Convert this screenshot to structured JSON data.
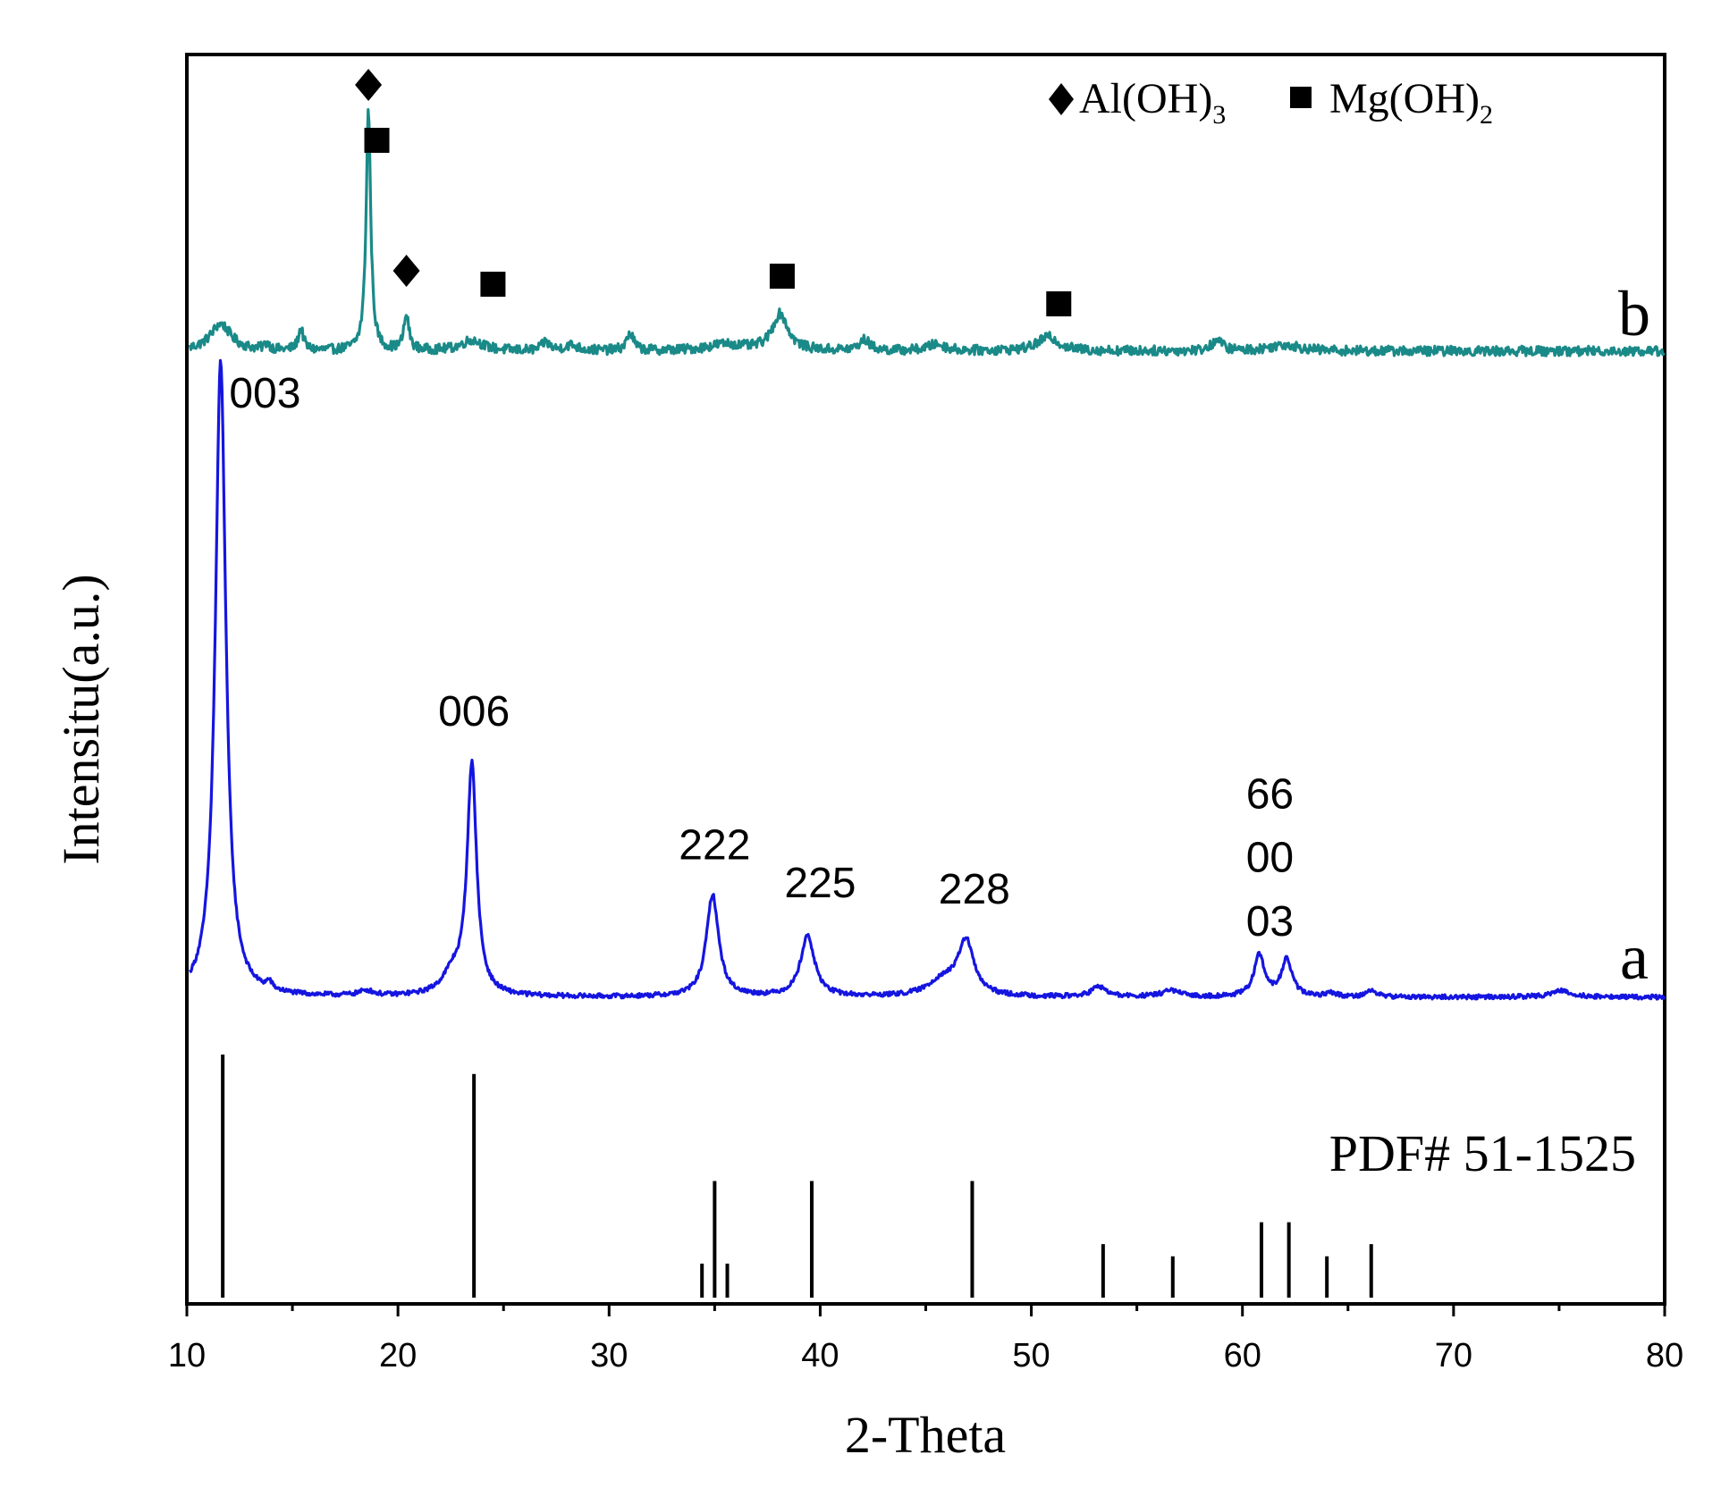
{
  "chart_data": {
    "type": "line",
    "xlabel": "2-Theta",
    "ylabel": "Intensitu(a.u.)",
    "xlim": [
      10,
      80
    ],
    "x_ticks": [
      10,
      20,
      30,
      40,
      50,
      60,
      70,
      80
    ],
    "y_ticks_shown": false,
    "grid": false,
    "legend": {
      "placement": "top-right",
      "entries": [
        {
          "marker": "diamond",
          "label": "Al(OH)",
          "subscript": "3"
        },
        {
          "marker": "square",
          "label": "Mg(OH)",
          "subscript": "2"
        }
      ]
    },
    "series": [
      {
        "name": "b",
        "color": "#1a8a88",
        "baseline": 0.6,
        "noise": 0.9,
        "peaks": [
          {
            "x": 11.6,
            "h": 2.5,
            "w": 0.6
          },
          {
            "x": 13.8,
            "h": 0.6,
            "w": 0.15
          },
          {
            "x": 15.4,
            "h": 2.0,
            "w": 0.15
          },
          {
            "x": 18.6,
            "h": 22.5,
            "w": 0.13
          },
          {
            "x": 20.4,
            "h": 3.2,
            "w": 0.15
          },
          {
            "x": 23.5,
            "h": 1.0,
            "w": 0.6
          },
          {
            "x": 27.0,
            "h": 0.8,
            "w": 0.2
          },
          {
            "x": 28.2,
            "h": 0.5,
            "w": 0.4
          },
          {
            "x": 31.0,
            "h": 1.6,
            "w": 0.2
          },
          {
            "x": 35.5,
            "h": 0.6,
            "w": 1.0
          },
          {
            "x": 38.1,
            "h": 3.4,
            "w": 0.45
          },
          {
            "x": 42.1,
            "h": 1.0,
            "w": 0.3
          },
          {
            "x": 45.5,
            "h": 0.6,
            "w": 0.5
          },
          {
            "x": 50.8,
            "h": 1.3,
            "w": 0.6
          },
          {
            "x": 58.8,
            "h": 1.0,
            "w": 0.3
          },
          {
            "x": 62.0,
            "h": 0.6,
            "w": 0.8
          }
        ],
        "markers": [
          {
            "x": 18.6,
            "type": "diamond"
          },
          {
            "x": 19.0,
            "type": "square"
          },
          {
            "x": 20.4,
            "type": "diamond"
          },
          {
            "x": 24.5,
            "type": "square"
          },
          {
            "x": 38.2,
            "type": "square"
          },
          {
            "x": 51.3,
            "type": "square"
          }
        ]
      },
      {
        "name": "a",
        "color": "#1515e0",
        "baseline": 0.3,
        "noise": 0.7,
        "peaks": [
          {
            "x": 11.6,
            "h": 100,
            "w": 0.3
          },
          {
            "x": 13.9,
            "h": 1.2,
            "w": 0.15
          },
          {
            "x": 18.5,
            "h": 0.8,
            "w": 0.4
          },
          {
            "x": 22.6,
            "h": 3.2,
            "w": 0.6
          },
          {
            "x": 23.5,
            "h": 36,
            "w": 0.27
          },
          {
            "x": 34.9,
            "h": 16,
            "w": 0.35
          },
          {
            "x": 39.4,
            "h": 9.5,
            "w": 0.4
          },
          {
            "x": 45.8,
            "h": 2.5,
            "w": 0.8
          },
          {
            "x": 46.9,
            "h": 8.5,
            "w": 0.45
          },
          {
            "x": 53.2,
            "h": 1.6,
            "w": 0.4
          },
          {
            "x": 56.6,
            "h": 1.0,
            "w": 0.5
          },
          {
            "x": 60.8,
            "h": 6.5,
            "w": 0.3
          },
          {
            "x": 62.1,
            "h": 5.8,
            "w": 0.3
          },
          {
            "x": 64.2,
            "h": 0.6,
            "w": 0.3
          },
          {
            "x": 66.1,
            "h": 1.0,
            "w": 0.3
          },
          {
            "x": 75.1,
            "h": 1.0,
            "w": 0.6
          }
        ]
      }
    ],
    "series_labels": [
      {
        "text": "b",
        "series": "b"
      },
      {
        "text": "a",
        "series": "a"
      }
    ],
    "peak_labels": [
      {
        "text": "003",
        "x": 13.7,
        "series": "a",
        "y": 93
      },
      {
        "text": "006",
        "x": 23.6,
        "series": "a",
        "y": 43
      },
      {
        "text": "222",
        "x": 35.0,
        "series": "a",
        "y": 22
      },
      {
        "text": "225",
        "x": 40.0,
        "series": "a",
        "y": 16
      },
      {
        "text": "228",
        "x": 47.3,
        "series": "a",
        "y": 15
      },
      {
        "text": "66",
        "x": 61.3,
        "series": "a",
        "y": 30
      },
      {
        "text": "00",
        "x": 61.3,
        "series": "a",
        "y": 20
      },
      {
        "text": "03",
        "x": 61.3,
        "series": "a",
        "y": 10
      }
    ],
    "reference": {
      "label": "PDF# 51-1525",
      "lines": [
        {
          "x": 11.7,
          "intensity": 100
        },
        {
          "x": 23.6,
          "intensity": 92
        },
        {
          "x": 34.4,
          "intensity": 14
        },
        {
          "x": 35.0,
          "intensity": 48
        },
        {
          "x": 35.6,
          "intensity": 14
        },
        {
          "x": 39.6,
          "intensity": 48
        },
        {
          "x": 47.2,
          "intensity": 48
        },
        {
          "x": 53.4,
          "intensity": 22
        },
        {
          "x": 56.7,
          "intensity": 17
        },
        {
          "x": 60.9,
          "intensity": 31
        },
        {
          "x": 62.2,
          "intensity": 31
        },
        {
          "x": 64.0,
          "intensity": 17
        },
        {
          "x": 66.1,
          "intensity": 22
        }
      ]
    }
  }
}
